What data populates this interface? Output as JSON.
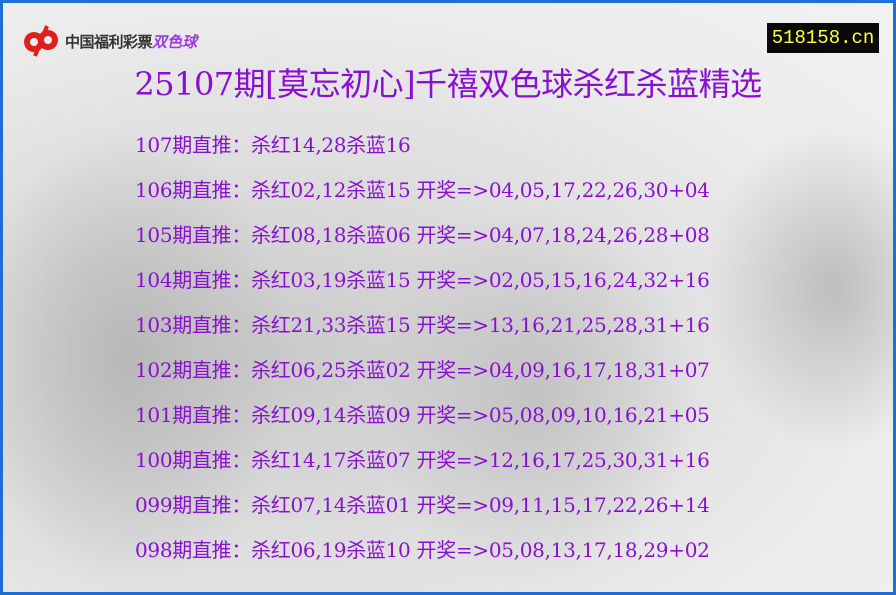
{
  "brand": {
    "logo_text": "中国福利彩票",
    "logo_game": "双色球",
    "site": "518158.cn"
  },
  "colors": {
    "border": "#1b6fd6",
    "text": "#8a10cf",
    "site_bg": "#0a0a0a",
    "site_text": "#ffff3a",
    "logo_red": "#e0201e"
  },
  "title": "25107期[莫忘初心]千禧双色球杀红杀蓝精选",
  "rows": [
    "107期直推：杀红14,28杀蓝16",
    "106期直推：杀红02,12杀蓝15 开奖=>04,05,17,22,26,30+04",
    "105期直推：杀红08,18杀蓝06 开奖=>04,07,18,24,26,28+08",
    "104期直推：杀红03,19杀蓝15 开奖=>02,05,15,16,24,32+16",
    "103期直推：杀红21,33杀蓝15 开奖=>13,16,21,25,28,31+16",
    "102期直推：杀红06,25杀蓝02 开奖=>04,09,16,17,18,31+07",
    "101期直推：杀红09,14杀蓝09 开奖=>05,08,09,10,16,21+05",
    "100期直推：杀红14,17杀蓝07 开奖=>12,16,17,25,30,31+16",
    "099期直推：杀红07,14杀蓝01 开奖=>09,11,15,17,22,26+14",
    "098期直推：杀红06,19杀蓝10 开奖=>05,08,13,17,18,29+02"
  ]
}
